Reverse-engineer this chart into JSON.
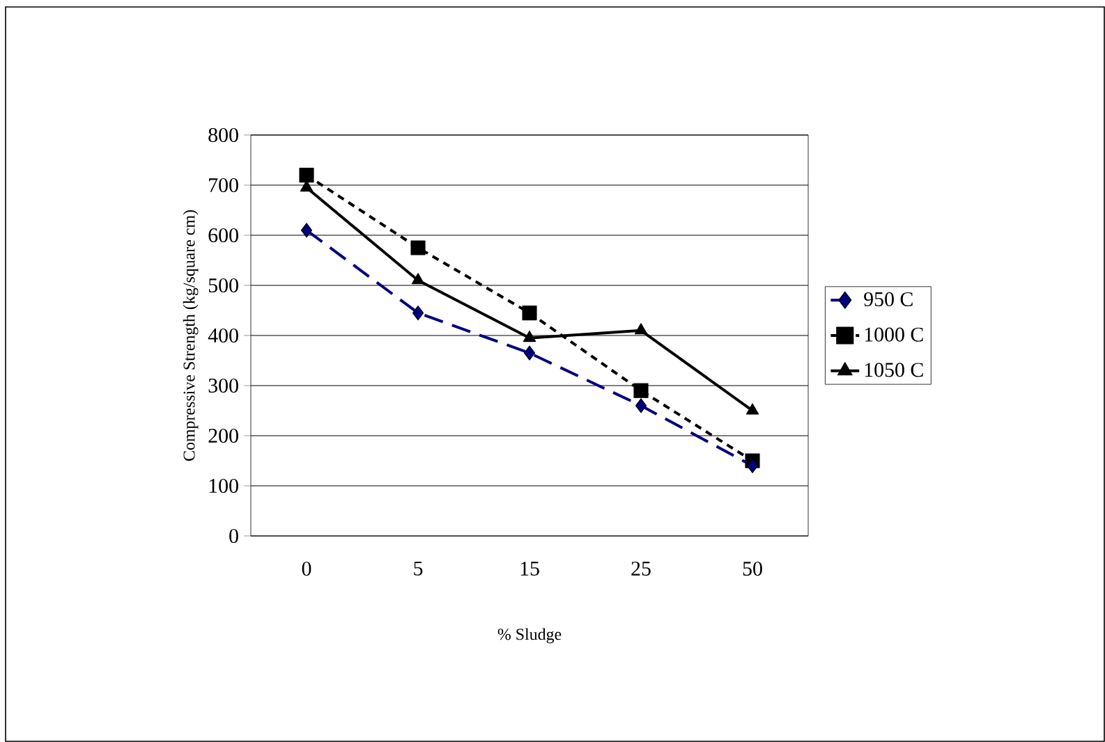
{
  "chart_data": {
    "type": "line",
    "xlabel": "% Sludge",
    "ylabel": "Compressive Strength (kg/square cm)",
    "categories": [
      "0",
      "5",
      "15",
      "25",
      "50"
    ],
    "series": [
      {
        "name": "950 C",
        "color": "#000080",
        "marker": "diamond",
        "line_style": "dashed",
        "values": [
          610,
          445,
          365,
          260,
          140
        ]
      },
      {
        "name": "1000 C",
        "color": "#000000",
        "marker": "square",
        "line_style": "dotted",
        "values": [
          720,
          575,
          445,
          290,
          150
        ]
      },
      {
        "name": "1050 C",
        "color": "#000000",
        "marker": "triangle",
        "line_style": "solid",
        "values": [
          695,
          510,
          395,
          410,
          250
        ]
      }
    ],
    "ylim": [
      0,
      800
    ],
    "yticks": [
      0,
      100,
      200,
      300,
      400,
      500,
      600,
      700,
      800
    ],
    "grid": "y",
    "legend": "right"
  }
}
